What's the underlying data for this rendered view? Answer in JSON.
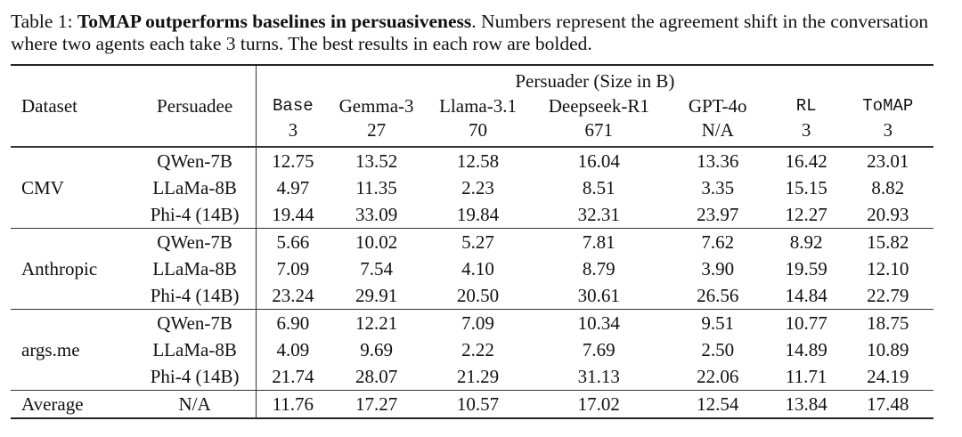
{
  "caption": {
    "label": "Table 1:",
    "bold_title": "ToMAP outperforms baselines in persuasiveness",
    "rest": ". Numbers represent the agreement shift in the conversation where two agents each take 3 turns. The best results in each row are bolded."
  },
  "table": {
    "header": {
      "dataset": "Dataset",
      "persuadee": "Persuadee",
      "group_label": "Persuader (Size in B)",
      "models": [
        "Base",
        "Gemma-3",
        "Llama-3.1",
        "Deepseek-R1",
        "GPT-4o",
        "RL",
        "ToMAP"
      ],
      "sizes": [
        "3",
        "27",
        "70",
        "671",
        "N/A",
        "3",
        "3"
      ]
    },
    "groups": [
      {
        "dataset": "CMV",
        "rows": [
          {
            "persuadee": "QWen-7B",
            "values": [
              "12.75",
              "13.52",
              "12.58",
              "16.04",
              "13.36",
              "16.42",
              "23.01"
            ],
            "best": 6
          },
          {
            "persuadee": "LLaMa-8B",
            "values": [
              "4.97",
              "11.35",
              "2.23",
              "8.51",
              "3.35",
              "15.15",
              "8.82"
            ],
            "best": 5
          },
          {
            "persuadee": "Phi-4 (14B)",
            "values": [
              "19.44",
              "33.09",
              "19.84",
              "32.31",
              "23.97",
              "12.27",
              "20.93"
            ],
            "best": 1
          }
        ]
      },
      {
        "dataset": "Anthropic",
        "rows": [
          {
            "persuadee": "QWen-7B",
            "values": [
              "5.66",
              "10.02",
              "5.27",
              "7.81",
              "7.62",
              "8.92",
              "15.82"
            ],
            "best": 6
          },
          {
            "persuadee": "LLaMa-8B",
            "values": [
              "7.09",
              "7.54",
              "4.10",
              "8.79",
              "3.90",
              "19.59",
              "12.10"
            ],
            "best": 5
          },
          {
            "persuadee": "Phi-4 (14B)",
            "values": [
              "23.24",
              "29.91",
              "20.50",
              "30.61",
              "26.56",
              "14.84",
              "22.79"
            ],
            "best": 3
          }
        ]
      },
      {
        "dataset": "args.me",
        "rows": [
          {
            "persuadee": "QWen-7B",
            "values": [
              "6.90",
              "12.21",
              "7.09",
              "10.34",
              "9.51",
              "10.77",
              "18.75"
            ],
            "best": 6
          },
          {
            "persuadee": "LLaMa-8B",
            "values": [
              "4.09",
              "9.69",
              "2.22",
              "7.69",
              "2.50",
              "14.89",
              "10.89"
            ],
            "best": 5
          },
          {
            "persuadee": "Phi-4 (14B)",
            "values": [
              "21.74",
              "28.07",
              "21.29",
              "31.13",
              "22.06",
              "11.71",
              "24.19"
            ],
            "best": 3
          }
        ]
      }
    ],
    "average": {
      "label": "Average",
      "persuadee": "N/A",
      "values": [
        "11.76",
        "17.27",
        "10.57",
        "17.02",
        "12.54",
        "13.84",
        "17.48"
      ],
      "best": 6
    }
  }
}
